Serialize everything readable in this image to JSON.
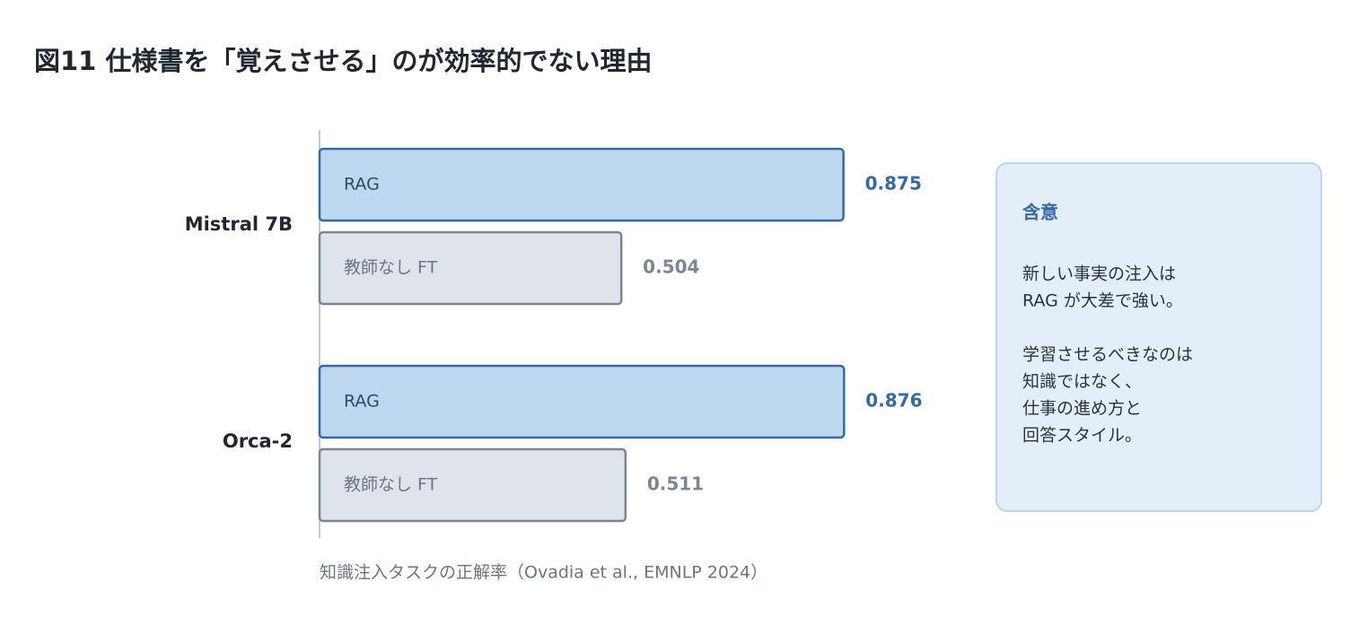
{
  "chart_data": {
    "type": "bar",
    "title": "図11 仕様書を「覚えさせる」のが効率的でない理由",
    "categories": [
      "Mistral 7B",
      "Orca-2"
    ],
    "series": [
      {
        "name": "RAG",
        "color": "#bdd7ee",
        "edgecolor": "#3569a8",
        "values": [
          0.875,
          0.876
        ]
      },
      {
        "name": "教師なし FT",
        "color": "#dfe4ec",
        "edgecolor": "#7c8594",
        "values": [
          0.504,
          0.511
        ]
      }
    ],
    "caption": "知識注入タスクの正解率（Ovadia et al., EMNLP 2024）"
  },
  "note": {
    "title": "含意",
    "paragraphs": [
      [
        "新しい事実の注入は",
        "RAG が大差で強い。"
      ],
      [
        "学習させるべきなのは",
        "知識ではなく、",
        "仕事の進め方と",
        "回答スタイル。"
      ]
    ]
  }
}
